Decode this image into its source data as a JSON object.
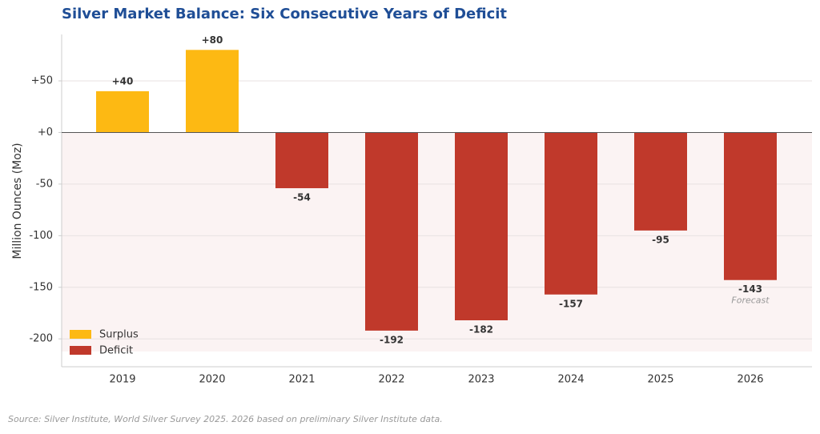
{
  "chart_data": {
    "type": "bar",
    "title": "Silver Market Balance: Six Consecutive Years of Deficit",
    "y_label": "Million Ounces (Moz)",
    "categories": [
      "2019",
      "2020",
      "2021",
      "2022",
      "2023",
      "2024",
      "2025",
      "2026"
    ],
    "series": [
      {
        "name": "Surplus",
        "color": "#fdb913",
        "values": [
          40,
          80,
          null,
          null,
          null,
          null,
          null,
          null
        ],
        "value_labels": [
          "+40",
          "+80",
          null,
          null,
          null,
          null,
          null,
          null
        ]
      },
      {
        "name": "Deficit",
        "color": "#c0392b",
        "values": [
          null,
          null,
          -54,
          -192,
          -182,
          -157,
          -95,
          -143
        ]
      }
    ],
    "ylim": [
      -227,
      95
    ],
    "yticks": [
      -200,
      -150,
      -100,
      -50,
      {
        "value": 0,
        "label": "+0"
      },
      {
        "value": 50,
        "label": "+50"
      }
    ],
    "grid": true,
    "legend": "lower left",
    "annotation": {
      "text": "Forecast",
      "category": 7
    },
    "source": "Source: Silver Institute, World Silver Survey 2025. 2026 based on preliminary Silver Institute data."
  }
}
